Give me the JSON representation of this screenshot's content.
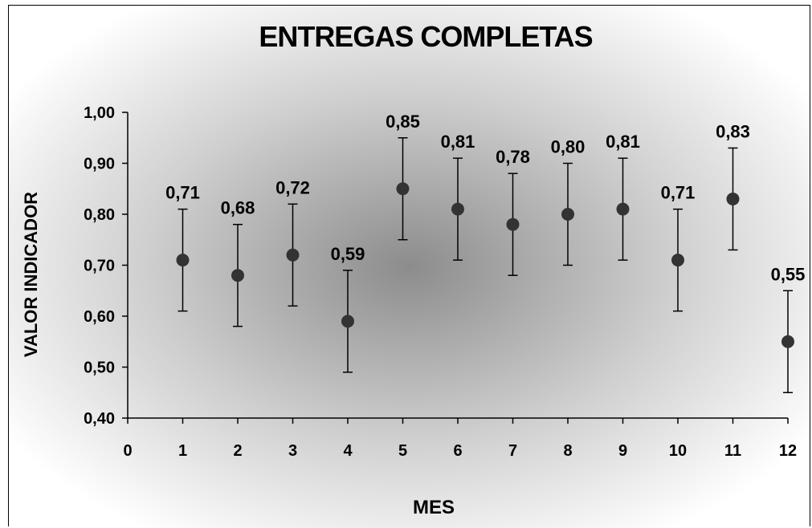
{
  "chart_data": {
    "type": "scatter",
    "title": "ENTREGAS COMPLETAS",
    "xlabel": "MES",
    "ylabel": "VALOR INDICADOR",
    "xlim": [
      0,
      12
    ],
    "ylim": [
      0.4,
      1.0
    ],
    "x_ticks": [
      "0",
      "1",
      "2",
      "3",
      "4",
      "5",
      "6",
      "7",
      "8",
      "9",
      "10",
      "11",
      "12"
    ],
    "y_ticks": [
      "0,40",
      "0,50",
      "0,60",
      "0,70",
      "0,80",
      "0,90",
      "1,00"
    ],
    "grid": false,
    "error_bar": 0.1,
    "x": [
      1,
      2,
      3,
      4,
      5,
      6,
      7,
      8,
      9,
      10,
      11,
      12
    ],
    "y": [
      0.71,
      0.68,
      0.72,
      0.59,
      0.85,
      0.81,
      0.78,
      0.8,
      0.81,
      0.71,
      0.83,
      0.55
    ],
    "data_labels": [
      "0,71",
      "0,68",
      "0,72",
      "0,59",
      "0,85",
      "0,81",
      "0,78",
      "0,80",
      "0,81",
      "0,71",
      "0,83",
      "0,55"
    ],
    "colors": {
      "marker": "#333333",
      "error_bar": "#000000",
      "axis": "#000000"
    }
  }
}
